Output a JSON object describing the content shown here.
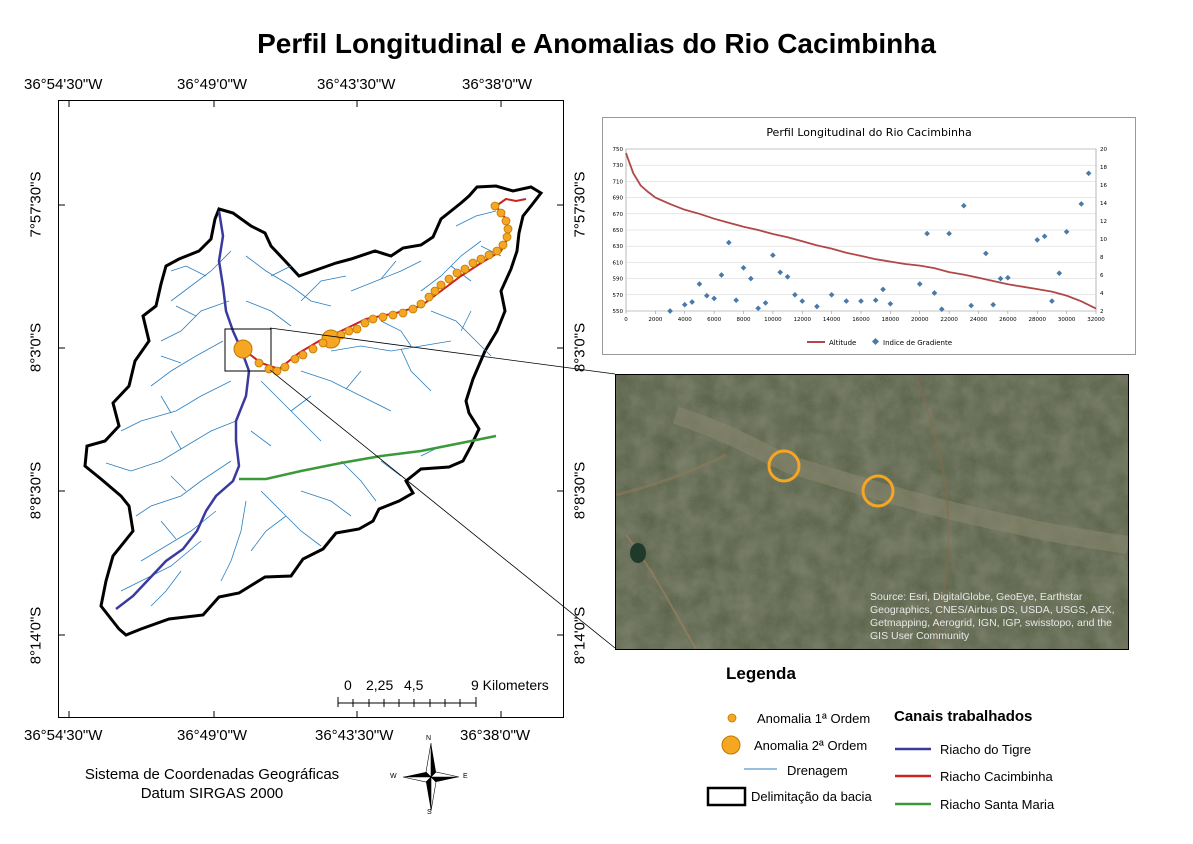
{
  "title": "Perfil Longitudinal e Anomalias do Rio Cacimbinha",
  "coords_top": [
    "36°54'30\"W",
    "36°49'0\"W",
    "36°43'30\"W",
    "36°38'0\"W"
  ],
  "coords_bottom": [
    "36°54'30\"W",
    "36°49'0\"W",
    "36°43'30\"W",
    "36°38'0\"W"
  ],
  "coords_left": [
    "7°57'30\"S",
    "8°3'0\"S",
    "8°8'30\"S",
    "8°14'0\"S"
  ],
  "coords_right": [
    "7°57'30\"S",
    "8°3'0\"S",
    "8°8'30\"S",
    "8°14'0\"S"
  ],
  "scale_bar": {
    "labels": [
      "0",
      "2,25",
      "4,5",
      "9 Kilometers"
    ]
  },
  "satellite": {
    "credit": "Source: Esri, DigitalGlobe, GeoEye, Earthstar Geographics, CNES/Airbus DS, USDA, USGS, AEX, Getmapping, Aerogrid, IGN, IGP, swisstopo, and the GIS User Community"
  },
  "legend": {
    "title": "Legenda",
    "items": {
      "anomaly1": "Anomalia 1ª Ordem",
      "anomaly2": "Anomalia 2ª Ordem",
      "drainage": "Drenagem",
      "basin": "Delimitação da bacia"
    },
    "canais_title": "Canais trabalhados",
    "canais": {
      "tigre": "Riacho do Tigre",
      "cacimbinha": "Riacho Cacimbinha",
      "santa_maria": "Riacho Santa Maria"
    }
  },
  "coordinate_system": {
    "line1": "Sistema de Coordenadas Geográficas",
    "line2": "Datum SIRGAS 2000"
  },
  "north_arrow": {
    "n": "N",
    "s": "S",
    "e": "E",
    "w": "W"
  },
  "colors": {
    "tigre": "#3a3a9e",
    "cacimbinha": "#cc2222",
    "santa_maria": "#3a9a3a",
    "drainage": "#2a7fc0",
    "anomaly": "#f5a623",
    "altitude": "#b04848",
    "gradient": "#4a7aaa"
  },
  "chart_data": {
    "type": "line",
    "title": "Perfil Longitudinal do Rio Cacimbinha",
    "x_ticks": [
      0,
      2000,
      4000,
      6000,
      8000,
      10000,
      12000,
      14000,
      16000,
      18000,
      20000,
      22000,
      24000,
      26000,
      28000,
      30000,
      32000
    ],
    "xlim": [
      0,
      32000
    ],
    "ylim_left": [
      550,
      750
    ],
    "y_ticks_left": [
      550,
      570,
      590,
      610,
      630,
      650,
      670,
      690,
      710,
      730,
      750
    ],
    "ylim_right": [
      2,
      20
    ],
    "y_ticks_right": [
      2,
      4,
      6,
      8,
      10,
      12,
      14,
      16,
      18,
      20
    ],
    "legend_position": "bottom",
    "series": [
      {
        "name": "Altitude",
        "axis": "left",
        "x": [
          0,
          200,
          500,
          1000,
          1500,
          2000,
          3000,
          4000,
          5000,
          6000,
          7000,
          8000,
          9000,
          10000,
          11000,
          12000,
          13000,
          14000,
          15000,
          16000,
          17000,
          18000,
          19000,
          20000,
          21000,
          22000,
          23000,
          24000,
          25000,
          26000,
          27000,
          28000,
          29000,
          30000,
          31000,
          32000
        ],
        "y": [
          745,
          735,
          720,
          705,
          697,
          690,
          682,
          675,
          670,
          664,
          659,
          654,
          650,
          645,
          641,
          636,
          631,
          627,
          622,
          618,
          614,
          611,
          608,
          606,
          603,
          598,
          595,
          591,
          587,
          583,
          580,
          577,
          574,
          569,
          562,
          553
        ]
      },
      {
        "name": "Indice de Gradiente",
        "axis": "right",
        "x": [
          3000,
          4000,
          4500,
          5000,
          5500,
          6000,
          6500,
          7000,
          7500,
          8000,
          8500,
          9000,
          9500,
          10000,
          10500,
          11000,
          11500,
          12000,
          13000,
          14000,
          15000,
          16000,
          17000,
          17500,
          18000,
          20000,
          20500,
          21000,
          21500,
          22000,
          23000,
          23500,
          24500,
          25000,
          25500,
          26000,
          28000,
          28500,
          29000,
          29500,
          30000,
          31000,
          31500
        ],
        "y": [
          2.0,
          2.7,
          3.0,
          5.0,
          3.7,
          3.4,
          6.0,
          9.6,
          3.2,
          6.8,
          5.6,
          2.3,
          2.9,
          8.2,
          6.3,
          5.8,
          3.8,
          3.1,
          2.5,
          3.8,
          3.1,
          3.1,
          3.2,
          4.4,
          2.8,
          5.0,
          10.6,
          4.0,
          2.2,
          10.6,
          13.7,
          2.6,
          8.4,
          2.7,
          5.6,
          5.7,
          9.9,
          10.3,
          3.1,
          6.2,
          10.8,
          13.9,
          17.3
        ]
      }
    ]
  }
}
